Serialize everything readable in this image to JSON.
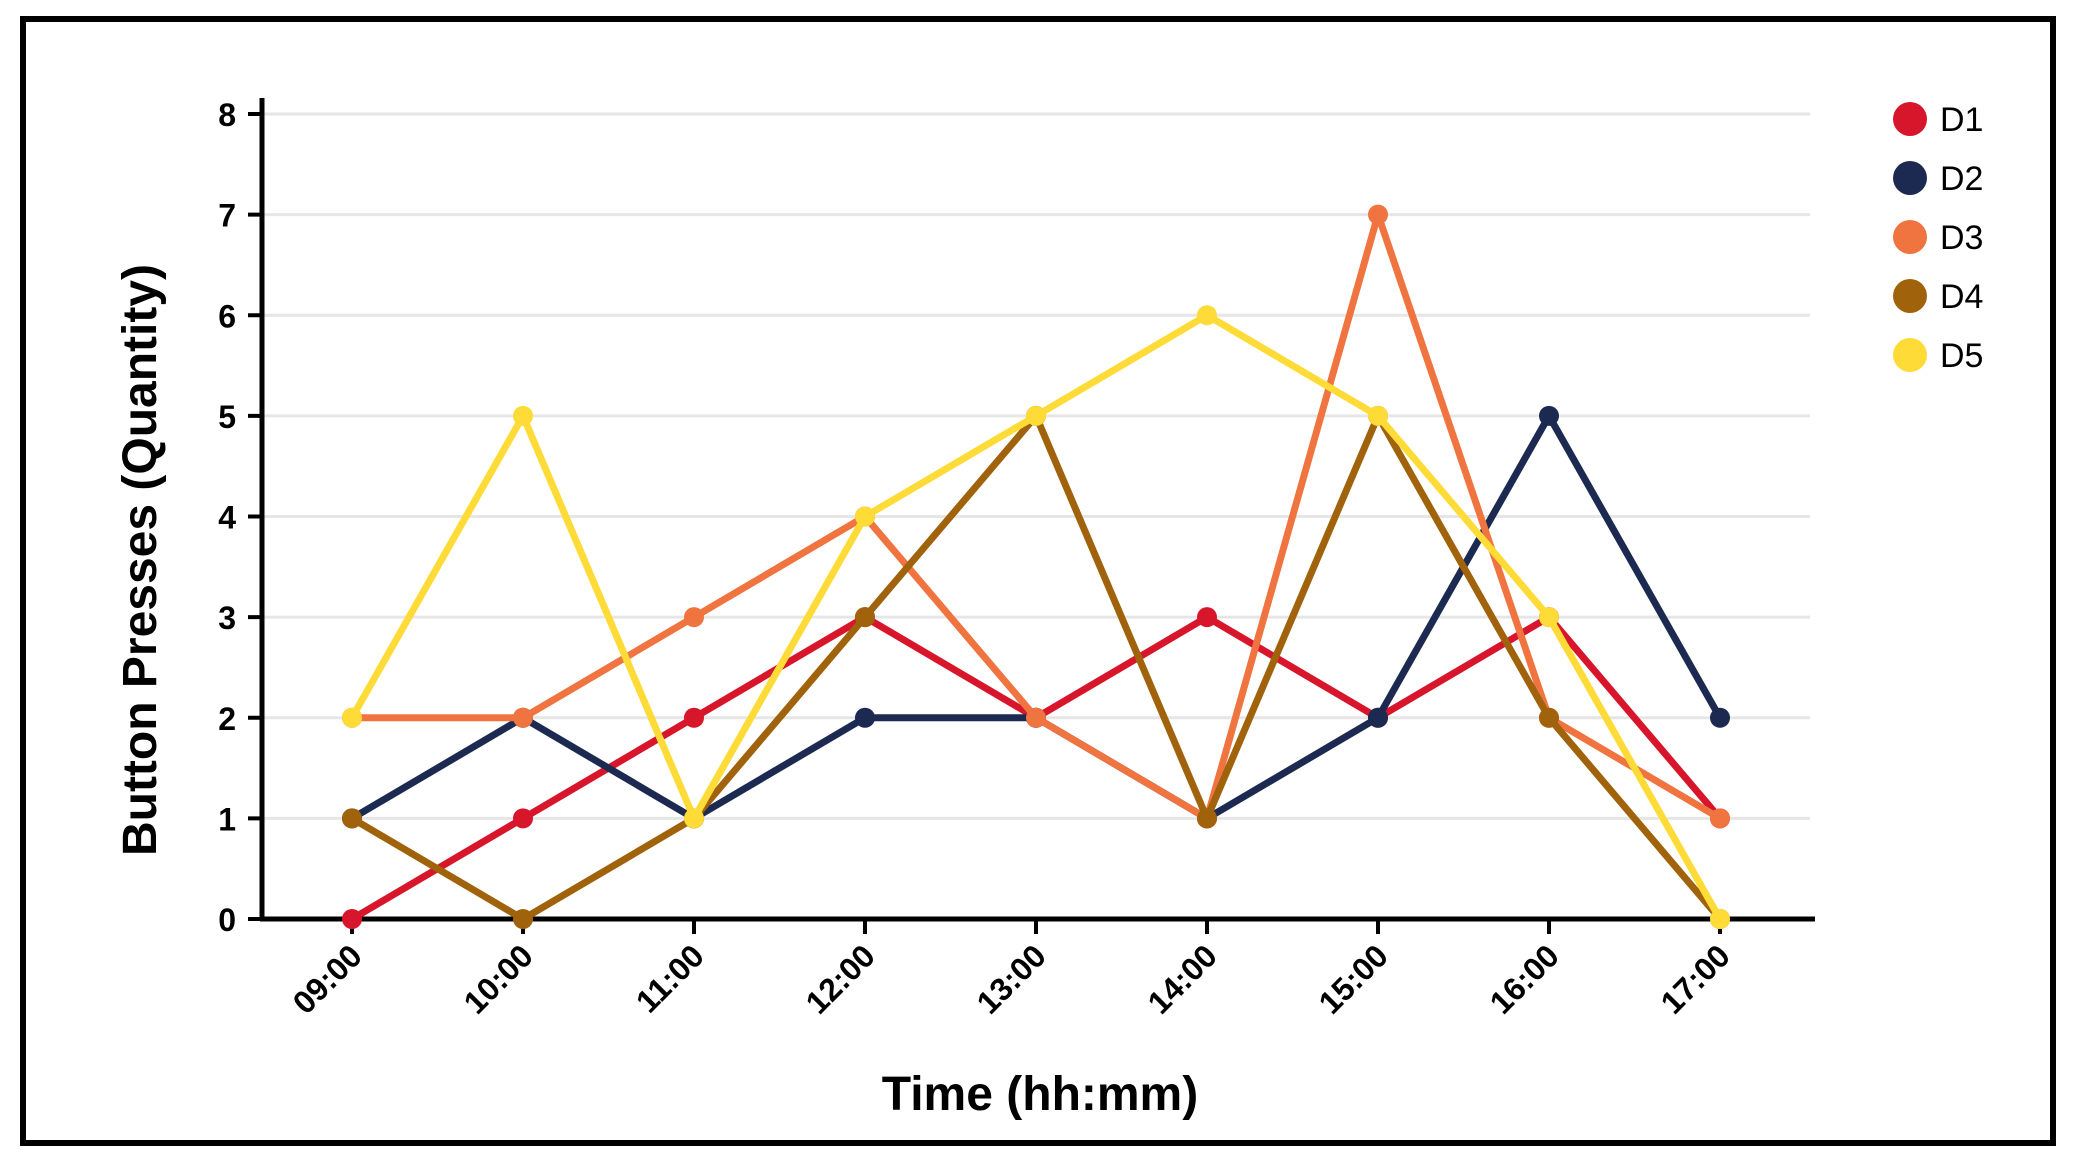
{
  "chart_data": {
    "type": "line",
    "title": "",
    "xlabel": "Time (hh:mm)",
    "ylabel": "Button Presses (Quantity)",
    "categories": [
      "09:00",
      "10:00",
      "11:00",
      "12:00",
      "13:00",
      "14:00",
      "15:00",
      "16:00",
      "17:00"
    ],
    "ylim": [
      0,
      8
    ],
    "yticks": [
      0,
      1,
      2,
      3,
      4,
      5,
      6,
      7,
      8
    ],
    "grid": true,
    "legend_position": "top-right",
    "series": [
      {
        "name": "D1",
        "color": "#d7152b",
        "values": [
          0,
          1,
          2,
          3,
          2,
          3,
          2,
          3,
          1
        ]
      },
      {
        "name": "D2",
        "color": "#1c2951",
        "values": [
          1,
          2,
          1,
          2,
          2,
          1,
          2,
          5,
          2
        ]
      },
      {
        "name": "D3",
        "color": "#f07440",
        "values": [
          2,
          2,
          3,
          4,
          2,
          1,
          7,
          2,
          1
        ]
      },
      {
        "name": "D4",
        "color": "#a0620a",
        "values": [
          1,
          0,
          1,
          3,
          5,
          1,
          5,
          2,
          0
        ]
      },
      {
        "name": "D5",
        "color": "#fedb36",
        "values": [
          2,
          5,
          1,
          4,
          5,
          6,
          5,
          3,
          0
        ]
      }
    ]
  }
}
